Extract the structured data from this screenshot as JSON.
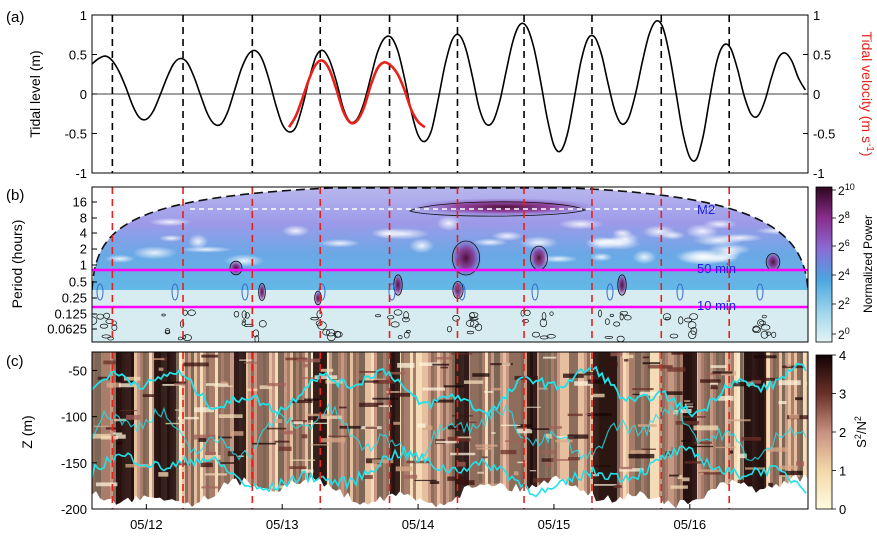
{
  "chart_data": [
    {
      "panel": "a",
      "type": "line",
      "ylabel": "Tidal level (m)",
      "y2label_main": "Tidal velocity (m s",
      "y2label_sup": "-1",
      "y2label_end": ")",
      "ylim": [
        -1,
        1
      ],
      "yticks": [
        -1,
        -0.5,
        0,
        0.5,
        1
      ],
      "y2ticks": [
        -1,
        -0.5,
        0,
        0.5,
        1
      ],
      "xlim_days": [
        11.6,
        16.87
      ],
      "high_tide_days": [
        11.75,
        12.27,
        12.78,
        13.28,
        13.79,
        14.29,
        14.78,
        15.28,
        15.79,
        16.29
      ],
      "series": [
        {
          "name": "Tidal level",
          "color": "#000000",
          "x": [
            11.6,
            11.65,
            11.7,
            11.75,
            11.8,
            11.85,
            11.9,
            11.95,
            12.0,
            12.05,
            12.1,
            12.15,
            12.2,
            12.25,
            12.3,
            12.35,
            12.4,
            12.45,
            12.5,
            12.55,
            12.6,
            12.65,
            12.7,
            12.75,
            12.8,
            12.85,
            12.9,
            12.95,
            13.0,
            13.05,
            13.1,
            13.15,
            13.2,
            13.25,
            13.3,
            13.35,
            13.4,
            13.45,
            13.5,
            13.55,
            13.6,
            13.65,
            13.7,
            13.75,
            13.8,
            13.85,
            13.9,
            13.95,
            14.0,
            14.05,
            14.1,
            14.15,
            14.2,
            14.25,
            14.3,
            14.35,
            14.4,
            14.45,
            14.5,
            14.55,
            14.6,
            14.65,
            14.7,
            14.75,
            14.8,
            14.85,
            14.9,
            14.95,
            15.0,
            15.05,
            15.1,
            15.15,
            15.2,
            15.25,
            15.3,
            15.35,
            15.4,
            15.45,
            15.5,
            15.55,
            15.6,
            15.65,
            15.7,
            15.75,
            15.8,
            15.85,
            15.9,
            15.95,
            16.0,
            16.05,
            16.1,
            16.15,
            16.2,
            16.25,
            16.3,
            16.35,
            16.4,
            16.45,
            16.5,
            16.55,
            16.6,
            16.65,
            16.7,
            16.75,
            16.8,
            16.85
          ],
          "y": [
            0.38,
            0.45,
            0.48,
            0.42,
            0.28,
            0.08,
            -0.15,
            -0.3,
            -0.32,
            -0.22,
            -0.02,
            0.2,
            0.38,
            0.45,
            0.4,
            0.22,
            -0.02,
            -0.25,
            -0.38,
            -0.38,
            -0.22,
            0.05,
            0.32,
            0.5,
            0.55,
            0.45,
            0.2,
            -0.12,
            -0.38,
            -0.48,
            -0.42,
            -0.15,
            0.2,
            0.48,
            0.55,
            0.42,
            0.15,
            -0.18,
            -0.35,
            -0.32,
            -0.12,
            0.2,
            0.52,
            0.7,
            0.72,
            0.55,
            0.2,
            -0.22,
            -0.52,
            -0.6,
            -0.45,
            -0.05,
            0.38,
            0.68,
            0.75,
            0.58,
            0.22,
            -0.18,
            -0.38,
            -0.35,
            -0.1,
            0.3,
            0.68,
            0.88,
            0.85,
            0.6,
            0.18,
            -0.3,
            -0.65,
            -0.72,
            -0.5,
            -0.05,
            0.42,
            0.7,
            0.72,
            0.5,
            0.12,
            -0.22,
            -0.38,
            -0.3,
            0.0,
            0.4,
            0.75,
            0.92,
            0.85,
            0.5,
            0.0,
            -0.5,
            -0.8,
            -0.82,
            -0.52,
            -0.02,
            0.42,
            0.62,
            0.58,
            0.32,
            -0.02,
            -0.25,
            -0.28,
            -0.1,
            0.2,
            0.45,
            0.52,
            0.42,
            0.2,
            0.05
          ]
        },
        {
          "name": "Tidal velocity",
          "color": "#e8201a",
          "x": [
            13.05,
            13.1,
            13.15,
            13.2,
            13.25,
            13.3,
            13.35,
            13.4,
            13.45,
            13.5,
            13.55,
            13.6,
            13.65,
            13.7,
            13.75,
            13.8,
            13.85,
            13.9,
            13.95,
            14.0,
            14.05
          ],
          "y": [
            -0.42,
            -0.28,
            -0.05,
            0.2,
            0.38,
            0.42,
            0.3,
            0.05,
            -0.22,
            -0.36,
            -0.34,
            -0.18,
            0.1,
            0.32,
            0.4,
            0.36,
            0.25,
            0.05,
            -0.2,
            -0.35,
            -0.42
          ]
        }
      ]
    },
    {
      "panel": "b",
      "type": "heatmap",
      "ylabel": "Period (hours)",
      "yticks": [
        "16",
        "8",
        "4",
        "2",
        "1",
        "0.5",
        "0.25",
        "0.125",
        "0.0625"
      ],
      "colorbar_label": "Normalized Power",
      "colorbar_ticks": [
        {
          "base": "2",
          "exp": "10"
        },
        {
          "base": "2",
          "exp": "8"
        },
        {
          "base": "2",
          "exp": "6"
        },
        {
          "base": "2",
          "exp": "4"
        },
        {
          "base": "2",
          "exp": "2"
        },
        {
          "base": "2",
          "exp": "0"
        }
      ],
      "annotations": [
        "M2",
        "50 min",
        "10 min"
      ],
      "reference_periods_hours": [
        12.42,
        0.833,
        0.1667
      ],
      "colormap": [
        "#d8eef2",
        "#5ab4e0",
        "#8a70d8",
        "#8b2a8a",
        "#3b0a2a"
      ]
    },
    {
      "panel": "c",
      "type": "heatmap",
      "ylabel": "Z (m)",
      "ylim": [
        -200,
        -30
      ],
      "yticks": [
        -50,
        -100,
        -150,
        -200
      ],
      "xticklabels": [
        "05/12",
        "05/13",
        "05/14",
        "05/15",
        "05/16"
      ],
      "xtick_days": [
        12,
        13,
        14,
        15,
        16
      ],
      "colorbar_label_S": "S",
      "colorbar_label_sup1": "2",
      "colorbar_label_N": "/N",
      "colorbar_label_sup2": "2",
      "colorbar_ticks": [
        0,
        1,
        2,
        3,
        4
      ],
      "colormap": [
        "#fdf8d8",
        "#f0c8a0",
        "#c08070",
        "#6a3028",
        "#1a0505"
      ],
      "contour_color": "#22e0e8"
    }
  ]
}
